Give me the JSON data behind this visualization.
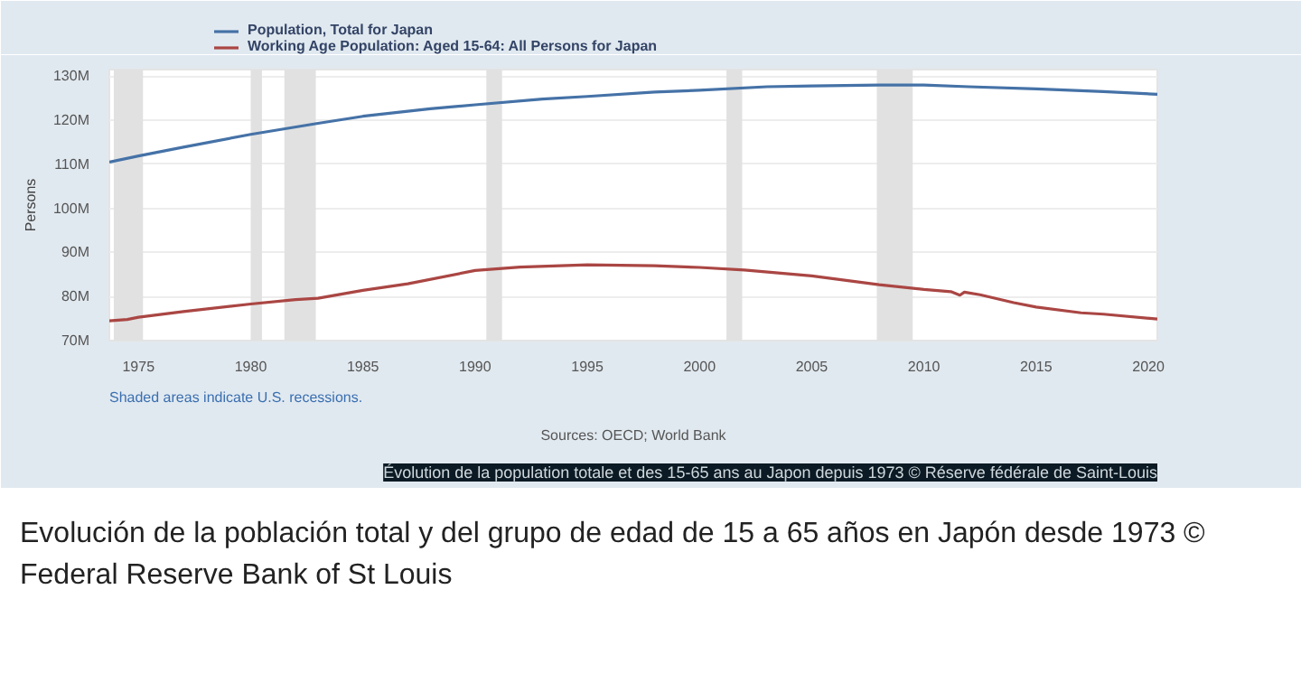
{
  "chart_data": {
    "type": "line",
    "ylabel": "Persons",
    "xlim": [
      1973.7,
      2020.4
    ],
    "xticks": [
      1975,
      1980,
      1985,
      1990,
      1995,
      2000,
      2005,
      2010,
      2015,
      2020
    ],
    "ylim": [
      70,
      131.5
    ],
    "yticks": [
      {
        "value": 70,
        "label": "70M"
      },
      {
        "value": 80,
        "label": "80M"
      },
      {
        "value": 90,
        "label": "90M"
      },
      {
        "value": 100,
        "label": "100M"
      },
      {
        "value": 110,
        "label": "110M"
      },
      {
        "value": 120,
        "label": "120M"
      },
      {
        "value": 130,
        "label": "130M"
      }
    ],
    "grid": "y",
    "legend": "top left",
    "marker": "none",
    "line_style": "solid",
    "series": [
      {
        "name": "Population, Total for Japan",
        "color": "#4572a7",
        "x": [
          1973.7,
          1975,
          1977,
          1980,
          1983,
          1985,
          1988,
          1990,
          1993,
          1995,
          1998,
          2000,
          2003,
          2005,
          2008,
          2010,
          2012,
          2015,
          2018,
          2020.4
        ],
        "values": [
          110.5,
          111.9,
          113.9,
          116.8,
          119.3,
          120.9,
          122.6,
          123.5,
          124.8,
          125.4,
          126.4,
          126.8,
          127.6,
          127.8,
          128.0,
          128.0,
          127.6,
          127.1,
          126.5,
          125.9
        ]
      },
      {
        "name": "Working Age Population: Aged 15-64: All Persons for Japan",
        "color": "#aa4643",
        "x": [
          1973.7,
          1974.5,
          1975,
          1977,
          1980,
          1982,
          1983,
          1985,
          1987,
          1990,
          1992,
          1995,
          1998,
          2000,
          2002,
          2005,
          2008,
          2010,
          2011.2,
          2011.6,
          2011.8,
          2012.5,
          2014,
          2015,
          2017,
          2018,
          2020.4
        ],
        "values": [
          74.5,
          74.8,
          75.3,
          76.6,
          78.3,
          79.3,
          79.6,
          81.4,
          82.9,
          85.9,
          86.7,
          87.2,
          87.0,
          86.6,
          86.0,
          84.7,
          82.7,
          81.6,
          81.1,
          80.3,
          81.0,
          80.4,
          78.6,
          77.6,
          76.3,
          76.0,
          74.9
        ]
      }
    ],
    "bands": [
      {
        "axis": "x",
        "from": 1973.9,
        "to": 1975.2,
        "color": "#e1e1e1"
      },
      {
        "axis": "x",
        "from": 1980.0,
        "to": 1980.5,
        "color": "#e1e1e1"
      },
      {
        "axis": "x",
        "from": 1981.5,
        "to": 1982.9,
        "color": "#e1e1e1"
      },
      {
        "axis": "x",
        "from": 1990.5,
        "to": 1991.2,
        "color": "#e1e1e1"
      },
      {
        "axis": "x",
        "from": 2001.2,
        "to": 2001.9,
        "color": "#e1e1e1"
      },
      {
        "axis": "x",
        "from": 2007.9,
        "to": 2009.5,
        "color": "#e1e1e1"
      }
    ],
    "annotations": [
      "Shaded areas indicate U.S. recessions.",
      "Sources: OECD; World Bank",
      "Évolution de la population totale et des 15-65 ans au Japon depuis 1973 © Réserve fédérale de Saint-Louis",
      "Evolución de la población total y del grupo de edad de 15 a 65 años en Japón desde 1973 © Federal Reserve Bank of St Louis"
    ]
  }
}
